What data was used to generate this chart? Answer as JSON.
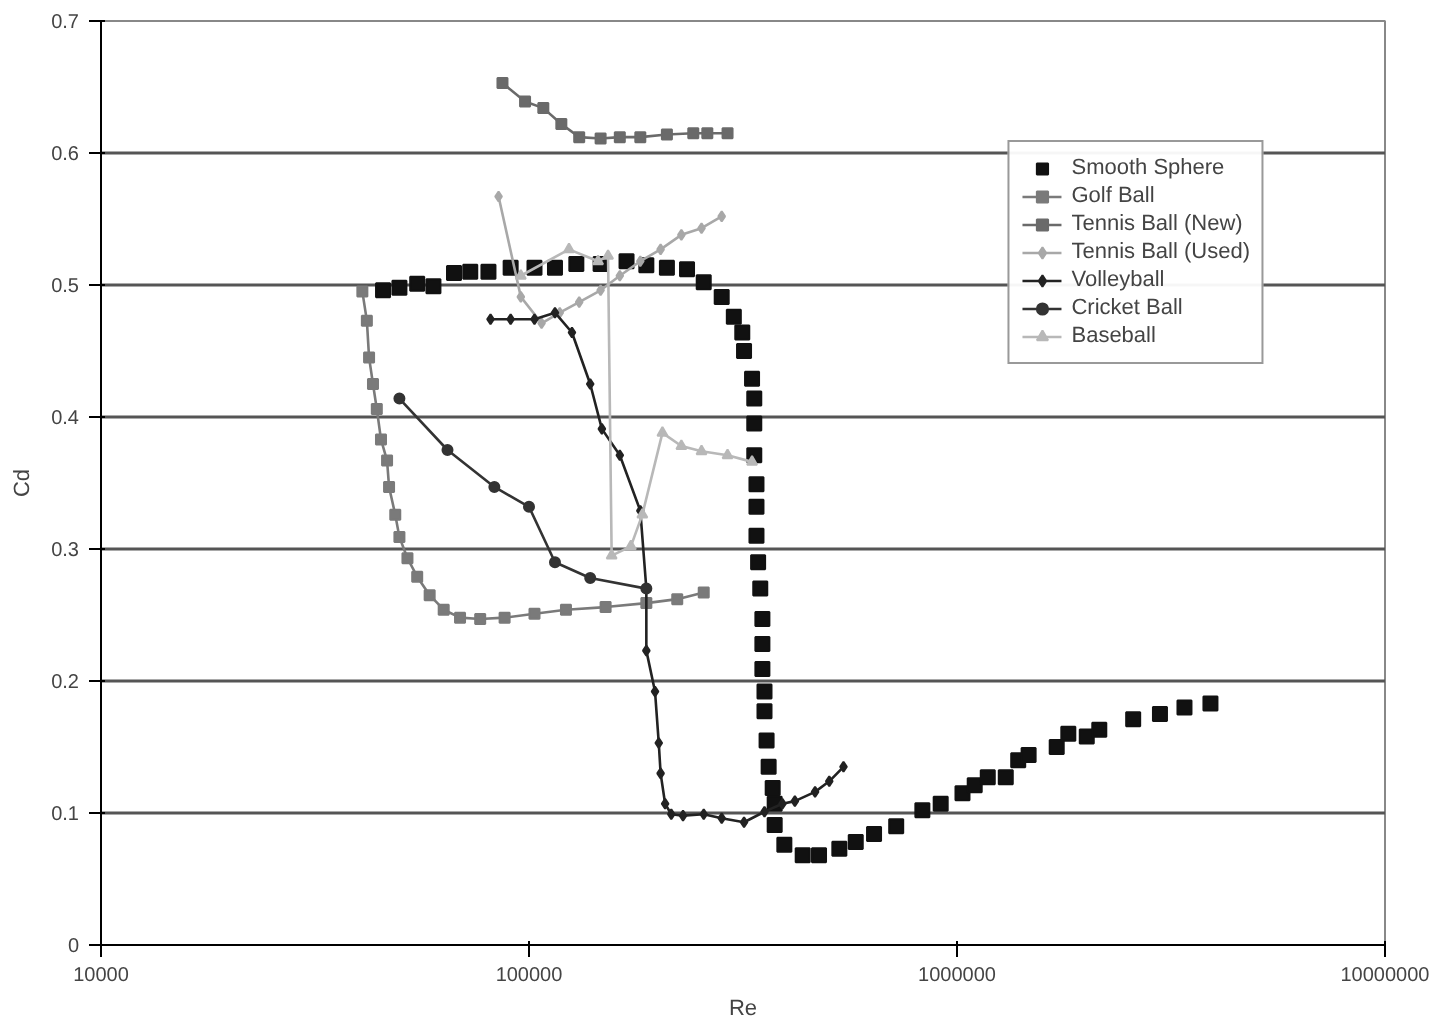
{
  "chart_data": {
    "type": "line",
    "xlabel": "Re",
    "ylabel": "Cd",
    "log": "x",
    "xlim": [
      10000,
      10000000
    ],
    "xticks": [
      10000,
      100000,
      1000000,
      10000000
    ],
    "ylim": [
      0,
      0.7
    ],
    "yticks": [
      0,
      0.1,
      0.2,
      0.3,
      0.4,
      0.5,
      0.6,
      0.7
    ],
    "grid": "y",
    "legend": "top right",
    "series": [
      {
        "name": "Smooth Sphere",
        "type": "scatter",
        "marker": "square",
        "color": "#111111",
        "x": [
          45600,
          49800,
          54800,
          59800,
          66800,
          72900,
          80400,
          90600,
          103000,
          115000,
          129000,
          147000,
          169000,
          188000,
          210000,
          234000,
          256000,
          282000,
          301000,
          315000,
          318000,
          332000,
          336000,
          336000,
          336000,
          340000,
          340000,
          340000,
          343000,
          347000,
          351000,
          351000,
          351000,
          355000,
          355000,
          359000,
          363000,
          371000,
          375000,
          375000,
          395000,
          436000,
          476000,
          531000,
          580000,
          640000,
          721000,
          830000,
          916000,
          1030000,
          1100000,
          1180000,
          1300000,
          1390000,
          1470000,
          1710000,
          1820000,
          2010000,
          2150000,
          2580000,
          2980000,
          3400000,
          3910000
        ],
        "values": [
          0.496,
          0.498,
          0.501,
          0.499,
          0.509,
          0.51,
          0.51,
          0.513,
          0.513,
          0.513,
          0.516,
          0.516,
          0.518,
          0.515,
          0.513,
          0.512,
          0.502,
          0.491,
          0.476,
          0.464,
          0.45,
          0.429,
          0.414,
          0.395,
          0.371,
          0.349,
          0.332,
          0.31,
          0.29,
          0.27,
          0.247,
          0.228,
          0.209,
          0.192,
          0.177,
          0.155,
          0.135,
          0.119,
          0.107,
          0.091,
          0.076,
          0.068,
          0.068,
          0.073,
          0.078,
          0.084,
          0.09,
          0.102,
          0.107,
          0.115,
          0.121,
          0.127,
          0.127,
          0.14,
          0.144,
          0.15,
          0.16,
          0.158,
          0.163,
          0.171,
          0.175,
          0.18,
          0.183
        ]
      },
      {
        "name": "Golf Ball",
        "marker": "square",
        "color": "#7a7a7a",
        "x": [
          40800,
          41800,
          42300,
          43200,
          44100,
          45100,
          46600,
          47100,
          48700,
          49800,
          52000,
          54800,
          58600,
          63200,
          69000,
          76900,
          87700,
          103000,
          122000,
          151000,
          188000,
          222000,
          256000
        ],
        "values": [
          0.495,
          0.473,
          0.445,
          0.425,
          0.406,
          0.383,
          0.367,
          0.347,
          0.326,
          0.309,
          0.293,
          0.279,
          0.265,
          0.254,
          0.248,
          0.247,
          0.248,
          0.251,
          0.254,
          0.256,
          0.259,
          0.262,
          0.267
        ]
      },
      {
        "name": "Tennis Ball (New)",
        "marker": "square",
        "color": "#6a6a6a",
        "x": [
          86700,
          97900,
          108000,
          119000,
          131000,
          147000,
          163000,
          182000,
          210000,
          242000,
          261000,
          291000
        ],
        "values": [
          0.653,
          0.639,
          0.634,
          0.622,
          0.612,
          0.611,
          0.612,
          0.612,
          0.614,
          0.615,
          0.615,
          0.615
        ]
      },
      {
        "name": "Tennis Ball (Used)",
        "marker": "diamond",
        "color": "#a8a8a8",
        "x": [
          84900,
          95700,
          107000,
          118000,
          131000,
          147000,
          163000,
          182000,
          203000,
          227000,
          253000,
          282000
        ],
        "values": [
          0.567,
          0.491,
          0.471,
          0.479,
          0.487,
          0.496,
          0.507,
          0.518,
          0.527,
          0.538,
          0.543,
          0.552
        ]
      },
      {
        "name": "Volleyball",
        "marker": "diamond",
        "color": "#222222",
        "x": [
          81300,
          90600,
          103000,
          115000,
          126000,
          139000,
          148000,
          163000,
          182000,
          188000,
          188000,
          197000,
          201000,
          203000,
          208000,
          215000,
          229000,
          256000,
          282000,
          318000,
          355000,
          391000,
          418000,
          466000,
          503000,
          543000
        ],
        "values": [
          0.474,
          0.474,
          0.474,
          0.479,
          0.464,
          0.425,
          0.391,
          0.371,
          0.329,
          0.27,
          0.223,
          0.192,
          0.153,
          0.13,
          0.107,
          0.099,
          0.098,
          0.099,
          0.096,
          0.093,
          0.101,
          0.107,
          0.109,
          0.116,
          0.124,
          0.135
        ]
      },
      {
        "name": "Cricket Ball",
        "marker": "circle",
        "color": "#333333",
        "x": [
          49800,
          64500,
          83000,
          100000,
          115000,
          139000,
          188000
        ],
        "values": [
          0.414,
          0.375,
          0.347,
          0.332,
          0.29,
          0.278,
          0.27
        ]
      },
      {
        "name": "Baseball",
        "marker": "triangle",
        "color": "#b8b8b8",
        "x": [
          95700,
          124000,
          145000,
          153000,
          156000,
          173000,
          184000,
          205000,
          227000,
          253000,
          291000,
          332000
        ],
        "values": [
          0.507,
          0.527,
          0.518,
          0.522,
          0.295,
          0.302,
          0.326,
          0.388,
          0.378,
          0.374,
          0.371,
          0.366
        ]
      }
    ]
  }
}
